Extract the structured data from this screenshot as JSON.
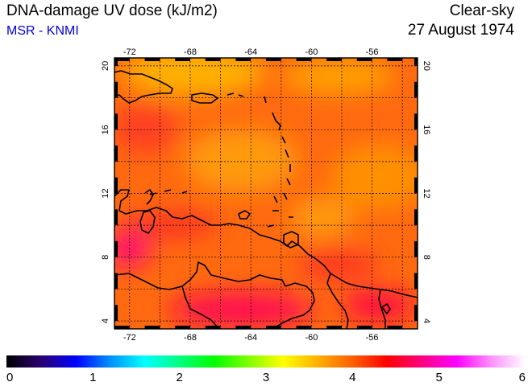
{
  "header": {
    "title": "DNA-damage UV dose (kJ/m2)",
    "subtitle": "MSR - KNMI",
    "sky": "Clear-sky",
    "date": "27 August 1974"
  },
  "map": {
    "lon_range": [
      -73,
      -53
    ],
    "lat_range": [
      3.5,
      20.5
    ],
    "lon_ticks": [
      -72,
      -68,
      -64,
      -60,
      -56
    ],
    "lat_ticks": [
      4,
      8,
      12,
      16,
      20
    ],
    "lon_tick_labels": [
      "-72",
      "-68",
      "-64",
      "-60",
      "-56"
    ],
    "lat_tick_labels": [
      "4",
      "8",
      "12",
      "16",
      "20"
    ],
    "grid": true
  },
  "colorbar": {
    "min": 0,
    "max": 6,
    "labels": [
      "0",
      "1",
      "2",
      "3",
      "4",
      "5",
      "6"
    ],
    "stops": [
      "#000000",
      "#2a0070",
      "#0000ff",
      "#0090ff",
      "#00ffff",
      "#00ff80",
      "#00ff00",
      "#80ff00",
      "#ffff00",
      "#ffb000",
      "#ff6000",
      "#ff0000",
      "#ff0080",
      "#ff00ff",
      "#ff90ff",
      "#ffffff"
    ]
  }
}
